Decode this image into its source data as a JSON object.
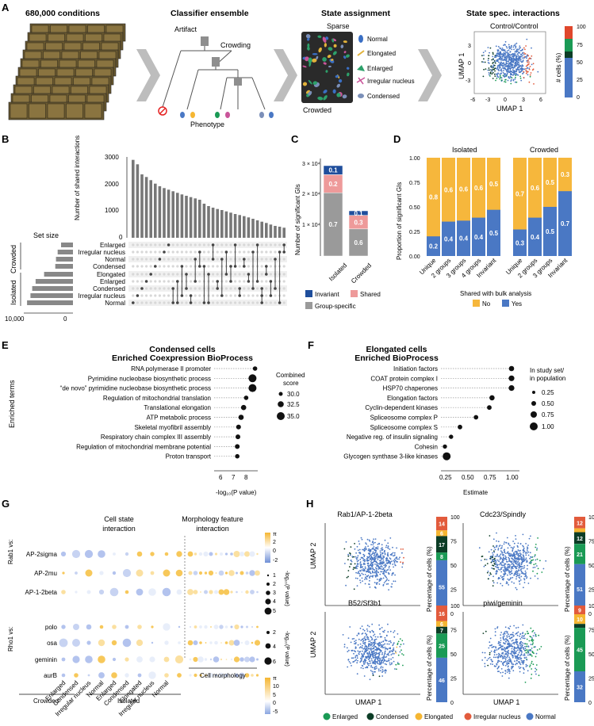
{
  "colors": {
    "enlarged": "#1a9a55",
    "condensed": "#0c3d26",
    "elongated": "#f5b632",
    "irregular": "#e25b3c",
    "normal": "#4a78c4",
    "invariant": "#1f4e9c",
    "shared": "#ee9a9a",
    "group": "#9a9a9a",
    "no": "#f6b73c",
    "yes": "#4a78c4"
  },
  "panelA": {
    "label": "A",
    "titles": [
      "680,000 conditions",
      "Classifier ensemble",
      "State assignment",
      "State spec. interactions"
    ],
    "tree": {
      "artifact": "Artifact",
      "crowding": "Crowding",
      "phenotype": "Phenotype"
    },
    "state": {
      "sparse": "Sparse",
      "crowded": "Crowded",
      "legend": [
        "Normal",
        "Elongated",
        "Enlarged",
        "Irregular nucleus",
        "Condensed"
      ]
    },
    "umap": {
      "subtitle": "Control/Control",
      "xlabel": "UMAP 1",
      "ylabel": "UMAP 1",
      "xticks": [
        "-6",
        "-3",
        "0",
        "3",
        "6"
      ],
      "yticks": [
        "3",
        "0",
        "-3"
      ],
      "cbar_label": "# cells (%)",
      "cbar_ticks": [
        "100",
        "75",
        "50",
        "25",
        "0"
      ]
    }
  },
  "panelB": {
    "label": "B",
    "ylabel": "Number of shared interactions",
    "yticks": [
      "3000",
      "2000",
      "1000",
      "0"
    ],
    "setsize_label": "Set size",
    "setsize_ticks": [
      "10,000",
      "0"
    ],
    "rows": [
      "Enlarged",
      "Irregular nucleus",
      "Normal",
      "Condensed",
      "Elongated",
      "Enlarged",
      "Condensed",
      "Irregular nucleus",
      "Normal"
    ],
    "groups": [
      "Crowded",
      "Isolated"
    ]
  },
  "panelC": {
    "label": "C",
    "ylabel": "Number of significant GIs",
    "yticks": [
      "3 × 10⁴",
      "2 × 10⁴",
      "1 × 10⁴"
    ],
    "categories": [
      "Isolated",
      "Crowded"
    ],
    "labels": {
      "isolated": [
        "0.1",
        "0.2",
        "0.7"
      ],
      "crowded": [
        "0.1",
        "0.3",
        "0.6"
      ]
    },
    "legend": [
      "Invariant",
      "Shared",
      "Group-specific"
    ]
  },
  "panelD": {
    "label": "D",
    "ylabel": "Proportion of significant GIs",
    "yticks": [
      "1.00",
      "0.75",
      "0.50",
      "0.25",
      "0.00"
    ],
    "groups": [
      "Isolated",
      "Crowded"
    ],
    "xlabel": "Shared with bulk analysis",
    "legend": [
      "No",
      "Yes"
    ]
  },
  "panelE": {
    "label": "E",
    "title1": "Condensed cells",
    "title2": "Enriched Coexpression BioProcess",
    "ylabel": "Enriched terms",
    "xlabel": "-log₁₀(P value)",
    "xticks": [
      "6",
      "7",
      "8"
    ],
    "size_title": [
      "Combined",
      "score"
    ],
    "size_legend": [
      "30.0",
      "32.5",
      "35.0"
    ]
  },
  "panelF": {
    "label": "F",
    "title1": "Elongated cells",
    "title2": "Enriched BioProcess",
    "xlabel": "Estimate",
    "xticks": [
      "0.25",
      "0.50",
      "0.75",
      "1.00"
    ],
    "size_title": [
      "In study set/",
      "in population"
    ],
    "size_legend": [
      "0.25",
      "0.50",
      "0.75",
      "1.00"
    ]
  },
  "panelG": {
    "label": "G",
    "sec1": [
      "Cell state",
      "interaction"
    ],
    "sec2": [
      "Morphology feature",
      "interaction"
    ],
    "rab_label": "Rab1 vs:",
    "rho_label": "Rho1 vs:",
    "rab_rows": [
      "AP-2sigma",
      "AP-2mu",
      "AP-1-2beta"
    ],
    "rho_rows": [
      "polo",
      "osa",
      "geminin",
      "aurB"
    ],
    "xcats": [
      "Enlarged",
      "Condensed",
      "Irregular nucleus",
      "Normal",
      "Enlarged",
      "Condensed",
      "Elongated",
      "Irregular nucleus",
      "Normal"
    ],
    "groups": [
      "Crowded",
      "Isolated"
    ],
    "morph_label": "Cell morphology",
    "cbar_top_ticks": [
      "π",
      "2",
      "0",
      "-2"
    ],
    "cbar_bot_ticks": [
      "π",
      "10",
      "5",
      "0",
      "-5"
    ],
    "size_top": [
      "1",
      "2",
      "3",
      "4",
      "5"
    ],
    "size_bot": [
      "2",
      "4",
      "6"
    ],
    "size_title": "-log₁₀(P value)"
  },
  "panelH": {
    "label": "H",
    "panels": [
      {
        "title": "Rab1/AP-1-2beta",
        "bar_values": [
          14,
          6,
          17,
          8,
          55
        ]
      },
      {
        "title": "Cdc23/Spindly",
        "bar_values": [
          12,
          4,
          12,
          21,
          51
        ]
      },
      {
        "title": "B52/Sf3b1",
        "bar_values": [
          16,
          6,
          7,
          25,
          46
        ]
      },
      {
        "title": "piwi/geminin",
        "bar_values": [
          9,
          10,
          4,
          45,
          32
        ]
      }
    ],
    "ylabel": "UMAP 2",
    "xlabel": "UMAP 1",
    "bar_ylabel": "Percentage of cells (%)",
    "bar_ticks": [
      "100",
      "75",
      "50",
      "25",
      "0"
    ],
    "legend": [
      "Enlarged",
      "Condensed",
      "Elongated",
      "Irregular nucleus",
      "Normal"
    ]
  },
  "chart_data": [
    {
      "type": "bar",
      "title": "Panel B upset intersection sizes",
      "ylabel": "Number of shared interactions",
      "ylim": [
        0,
        3000
      ],
      "values": [
        2950,
        2780,
        2400,
        2300,
        2180,
        2050,
        1950,
        1880,
        1820,
        1760,
        1700,
        1640,
        1590,
        1540,
        1490,
        1440,
        1290,
        1200,
        1140,
        1090,
        1050,
        1000,
        950,
        900,
        860,
        820,
        770,
        720,
        660,
        610,
        560,
        500,
        450,
        420,
        380
      ]
    },
    {
      "type": "bar",
      "title": "Panel B set sizes",
      "categories": [
        "Crowded Enlarged",
        "Crowded Irregular nucleus",
        "Crowded Normal",
        "Crowded Condensed",
        "Isolated Elongated",
        "Isolated Enlarged",
        "Isolated Condensed",
        "Isolated Irregular nucleus",
        "Isolated Normal"
      ],
      "values": [
        3500,
        4500,
        5000,
        5200,
        8500,
        11000,
        12000,
        12500,
        13500
      ]
    },
    {
      "type": "bar",
      "title": "Panel C significant GIs",
      "categories": [
        "Isolated",
        "Crowded"
      ],
      "series": [
        {
          "name": "Group-specific",
          "values": [
            21000,
            9000
          ]
        },
        {
          "name": "Shared",
          "values": [
            6000,
            4500
          ]
        },
        {
          "name": "Invariant",
          "values": [
            3000,
            1500
          ]
        }
      ],
      "ylabel": "Number of significant GIs"
    },
    {
      "type": "bar",
      "title": "Panel D shared with bulk",
      "categories": [
        "Isolated Unique",
        "Isolated 2 groups",
        "Isolated 3 groups",
        "Isolated 4 groups",
        "Isolated Invariant",
        "Crowded Unique",
        "Crowded 2 groups",
        "Crowded 3 groups",
        "Crowded Invariant"
      ],
      "series": [
        {
          "name": "Yes",
          "values": [
            0.2,
            0.35,
            0.36,
            0.39,
            0.47,
            0.27,
            0.39,
            0.5,
            0.66
          ]
        },
        {
          "name": "No",
          "values": [
            0.8,
            0.65,
            0.64,
            0.61,
            0.53,
            0.73,
            0.61,
            0.5,
            0.34
          ]
        }
      ],
      "labels_yes": [
        "0.2",
        "0.4",
        "0.4",
        "0.4",
        "0.5",
        "0.3",
        "0.4",
        "0.5",
        "0.7"
      ],
      "labels_no": [
        "0.8",
        "0.6",
        "0.6",
        "0.6",
        "0.5",
        "0.7",
        "0.6",
        "0.5",
        "0.3"
      ],
      "ylim": [
        0,
        1
      ]
    },
    {
      "type": "scatter",
      "title": "Panel E Condensed cells",
      "categories": [
        "RNA polymerase II promoter",
        "Pyrimidine nucleobase biosynthetic process",
        "“de novo” pyrimidine nucleobase biosynthetic process",
        "Regulation of mitochondrial translation",
        "Translational elongation",
        "ATP metabolic process",
        "Skeletal myofibril assembly",
        "Respiratory chain complex III assembly",
        "Regulation of mitochondrial membrane potential",
        "Proton transport"
      ],
      "x": [
        8.6,
        8.4,
        8.4,
        7.9,
        7.7,
        7.5,
        7.3,
        7.25,
        7.2,
        7.2
      ],
      "size": [
        30.5,
        35,
        35,
        30.5,
        31.5,
        31.5,
        31,
        31,
        31,
        30.5
      ],
      "xlim": [
        5.5,
        9
      ]
    },
    {
      "type": "scatter",
      "title": "Panel F Elongated cells",
      "categories": [
        "Initiation factors",
        "COAT protein complex I",
        "HSP70 chaperones",
        "Elongation factors",
        "Cyclin-dependent kinases",
        "Spliceosome complex P",
        "Spliceosome complex S",
        "Negative reg. of insulin signaling",
        "Cohesin",
        "Glycogen synthase 3-like kinases"
      ],
      "x": [
        1.0,
        1.0,
        1.0,
        0.78,
        0.75,
        0.6,
        0.42,
        0.32,
        0.25,
        0.27
      ],
      "size": [
        0.5,
        0.6,
        0.6,
        0.5,
        0.4,
        0.4,
        0.4,
        0.35,
        0.35,
        1.0
      ],
      "xlim": [
        0.15,
        1.05
      ]
    }
  ]
}
